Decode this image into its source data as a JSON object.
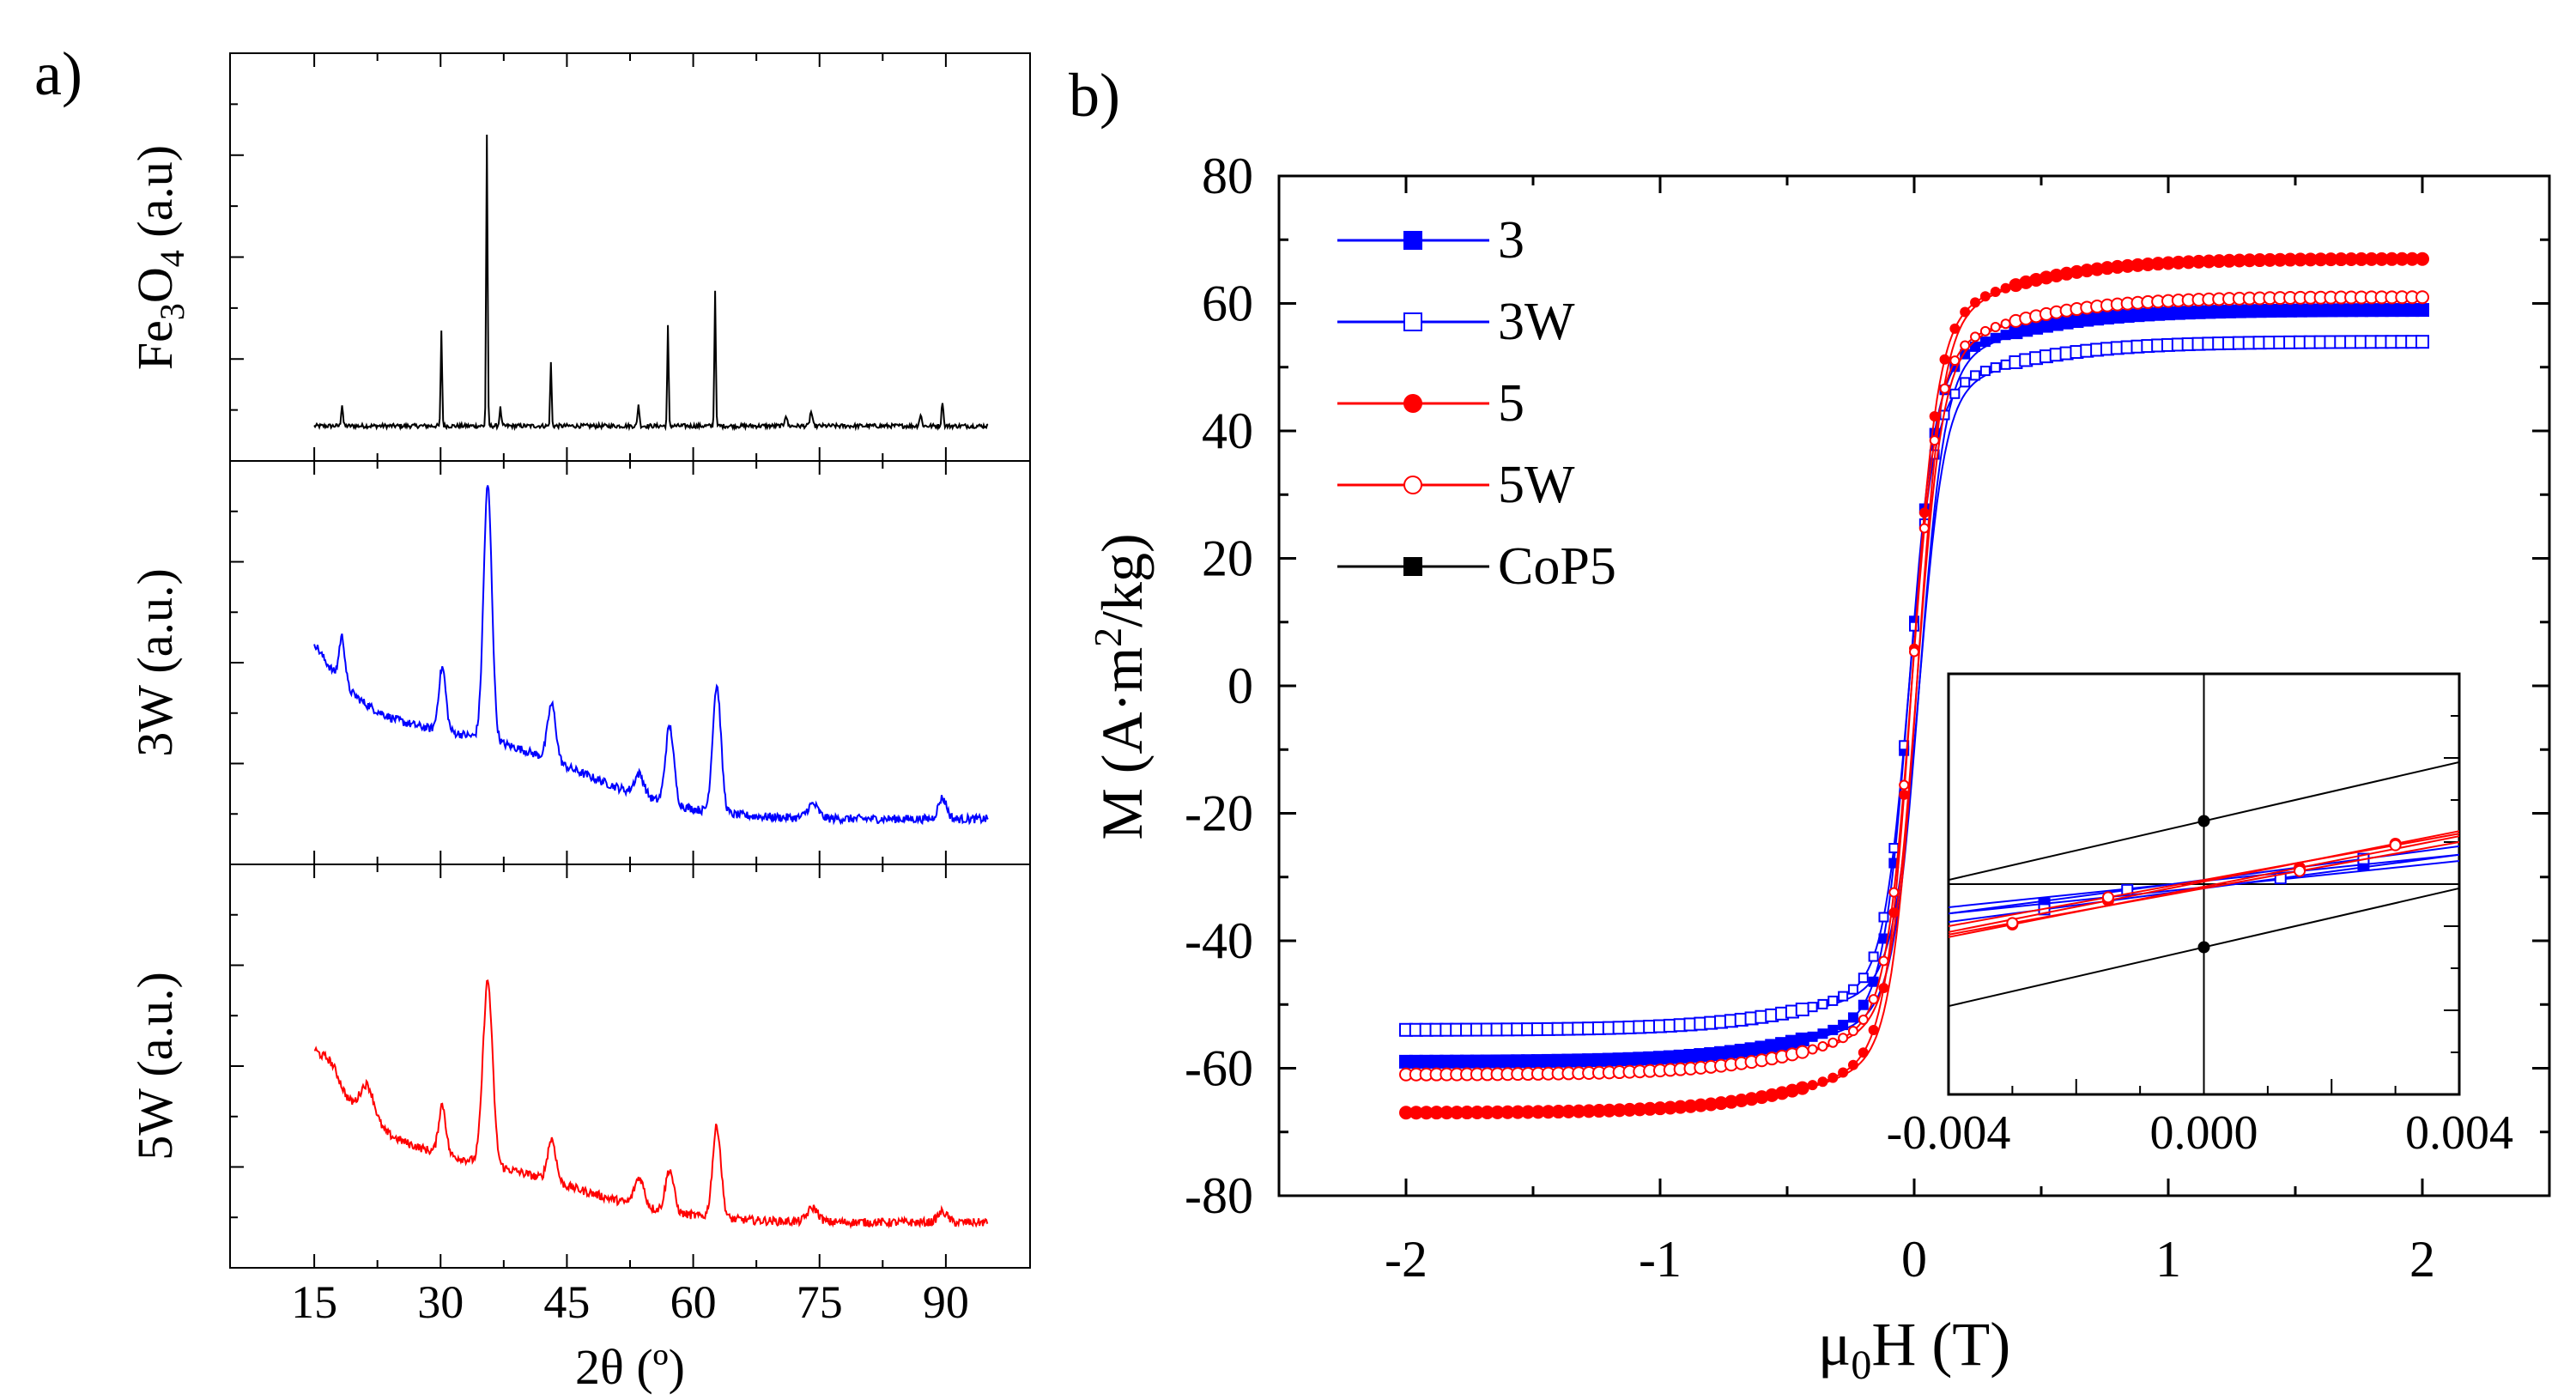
{
  "figure": {
    "panel_a_label": "a)",
    "panel_b_label": "b)"
  },
  "colors": {
    "black": "#000000",
    "blue": "#0000ff",
    "red": "#ff0000"
  },
  "chart_data": [
    {
      "type": "line",
      "panel": "a",
      "xlabel": "2θ (º)",
      "x_ticks": [
        "15",
        "30",
        "45",
        "60",
        "75",
        "90"
      ],
      "xlim": [
        5,
        100
      ],
      "series": [
        {
          "name": "Fe3O4",
          "ylabel_main": "Fe",
          "ylabel_sub1": "3",
          "ylabel_mid": "O",
          "ylabel_sub2": "4",
          "ylabel_tail": " (a.u)",
          "color": "#000000",
          "baseline": 0.05,
          "noise": 0.006,
          "peaks": [
            {
              "x": 18.3,
              "h": 0.06,
              "w": 0.15
            },
            {
              "x": 30.1,
              "h": 0.27,
              "w": 0.12
            },
            {
              "x": 35.5,
              "h": 0.82,
              "w": 0.12
            },
            {
              "x": 37.1,
              "h": 0.05,
              "w": 0.15
            },
            {
              "x": 43.1,
              "h": 0.18,
              "w": 0.12
            },
            {
              "x": 53.5,
              "h": 0.06,
              "w": 0.15
            },
            {
              "x": 57.0,
              "h": 0.28,
              "w": 0.12
            },
            {
              "x": 62.6,
              "h": 0.38,
              "w": 0.12
            },
            {
              "x": 71.0,
              "h": 0.03,
              "w": 0.2
            },
            {
              "x": 74.0,
              "h": 0.04,
              "w": 0.2
            },
            {
              "x": 87.0,
              "h": 0.03,
              "w": 0.2
            },
            {
              "x": 89.6,
              "h": 0.07,
              "w": 0.15
            }
          ]
        },
        {
          "name": "3W",
          "ylabel": "3W (a.u.)",
          "color": "#0000ff",
          "baseline": 0.08,
          "noise": 0.012,
          "background": {
            "amp": 0.45,
            "center": 15,
            "decay": 9,
            "offset": 0.18
          },
          "peaks": [
            {
              "x": 18.3,
              "h": 0.13,
              "w": 0.5
            },
            {
              "x": 30.2,
              "h": 0.18,
              "w": 0.6
            },
            {
              "x": 35.6,
              "h": 0.72,
              "w": 0.7
            },
            {
              "x": 43.2,
              "h": 0.16,
              "w": 0.7
            },
            {
              "x": 53.6,
              "h": 0.06,
              "w": 0.8
            },
            {
              "x": 57.2,
              "h": 0.22,
              "w": 0.7
            },
            {
              "x": 62.8,
              "h": 0.36,
              "w": 0.7
            },
            {
              "x": 74.2,
              "h": 0.04,
              "w": 0.9
            },
            {
              "x": 89.6,
              "h": 0.06,
              "w": 0.7
            }
          ]
        },
        {
          "name": "5W",
          "ylabel": "5W (a.u.)",
          "color": "#ff0000",
          "baseline": 0.08,
          "noise": 0.012,
          "background": {
            "amp": 0.45,
            "center": 15,
            "decay": 9,
            "offset": 0.12
          },
          "peaks": [
            {
              "x": 17.0,
              "h": 0.05,
              "w": 1.5
            },
            {
              "x": 21.3,
              "h": 0.1,
              "w": 1.2
            },
            {
              "x": 30.2,
              "h": 0.14,
              "w": 0.6
            },
            {
              "x": 35.6,
              "h": 0.52,
              "w": 0.8
            },
            {
              "x": 43.2,
              "h": 0.12,
              "w": 0.7
            },
            {
              "x": 53.6,
              "h": 0.08,
              "w": 0.8
            },
            {
              "x": 57.2,
              "h": 0.12,
              "w": 0.7
            },
            {
              "x": 62.8,
              "h": 0.26,
              "w": 0.7
            },
            {
              "x": 74.2,
              "h": 0.04,
              "w": 0.9
            },
            {
              "x": 89.6,
              "h": 0.03,
              "w": 0.8
            }
          ]
        }
      ]
    },
    {
      "type": "line",
      "panel": "b",
      "xlabel_main": "μ",
      "xlabel_sub": "0",
      "xlabel_tail": "H (T)",
      "ylabel_main": "M (A·m",
      "ylabel_sup": "2",
      "ylabel_tail": "/kg)",
      "xlim": [
        -2.5,
        2.5
      ],
      "ylim": [
        -80,
        80
      ],
      "x_ticks": [
        "-2",
        "-1",
        "0",
        "1",
        "2"
      ],
      "y_ticks": [
        "80",
        "60",
        "40",
        "20",
        "0",
        "-20",
        "-40",
        "-60",
        "-80"
      ],
      "series": [
        {
          "name": "3",
          "color": "#0000ff",
          "marker": "square-filled",
          "Ms": 59,
          "a": 0.1,
          "Hc": 0.0002,
          "Mr": 0.08
        },
        {
          "name": "3W",
          "color": "#0000ff",
          "marker": "square-open",
          "Ms": 54,
          "a": 0.1,
          "Hc": 0.0002,
          "Mr": 0.08
        },
        {
          "name": "5",
          "color": "#ff0000",
          "marker": "circle-filled",
          "Ms": 67,
          "a": 0.1,
          "Hc": 0.0001,
          "Mr": 0.05
        },
        {
          "name": "5W",
          "color": "#ff0000",
          "marker": "circle-open",
          "Ms": 61,
          "a": 0.1,
          "Hc": 0.0001,
          "Mr": 0.05
        },
        {
          "name": "CoP5",
          "color": "#000000",
          "marker": "square-filled",
          "Ms": 0,
          "a": 0.1,
          "Hc": 0,
          "Mr": 0
        }
      ],
      "inset": {
        "xlim": [
          -0.004,
          0.004
        ],
        "x_ticks": [
          "-0.004",
          "0.000",
          "0.004"
        ],
        "ylim": [
          -1,
          1
        ],
        "series": [
          {
            "name": "3",
            "color": "#0000ff",
            "marker": "square-filled",
            "slope": 0.125,
            "offset": 0.015,
            "pts": [
              -0.0025,
              0.0025
            ]
          },
          {
            "name": "3W",
            "color": "#0000ff",
            "marker": "square-open",
            "slope": 0.16,
            "offset": 0.02,
            "pts": [
              -0.0025,
              -0.0012,
              0.0012,
              0.0025
            ]
          },
          {
            "name": "5",
            "color": "#ff0000",
            "marker": "circle-filled",
            "slope": 0.24,
            "offset": 0.012,
            "pts": [
              -0.003,
              -0.0015,
              0.0015,
              0.003
            ]
          },
          {
            "name": "5W",
            "color": "#ff0000",
            "marker": "circle-open",
            "slope": 0.22,
            "offset": 0.02,
            "pts": [
              -0.003,
              -0.0015,
              0.0015,
              0.003
            ]
          },
          {
            "name": "CoP5",
            "color": "#000000",
            "marker": "circle-filled",
            "slope": 0.28,
            "offset": 0.3,
            "pts": [
              0.0,
              0.0
            ]
          }
        ]
      }
    }
  ]
}
